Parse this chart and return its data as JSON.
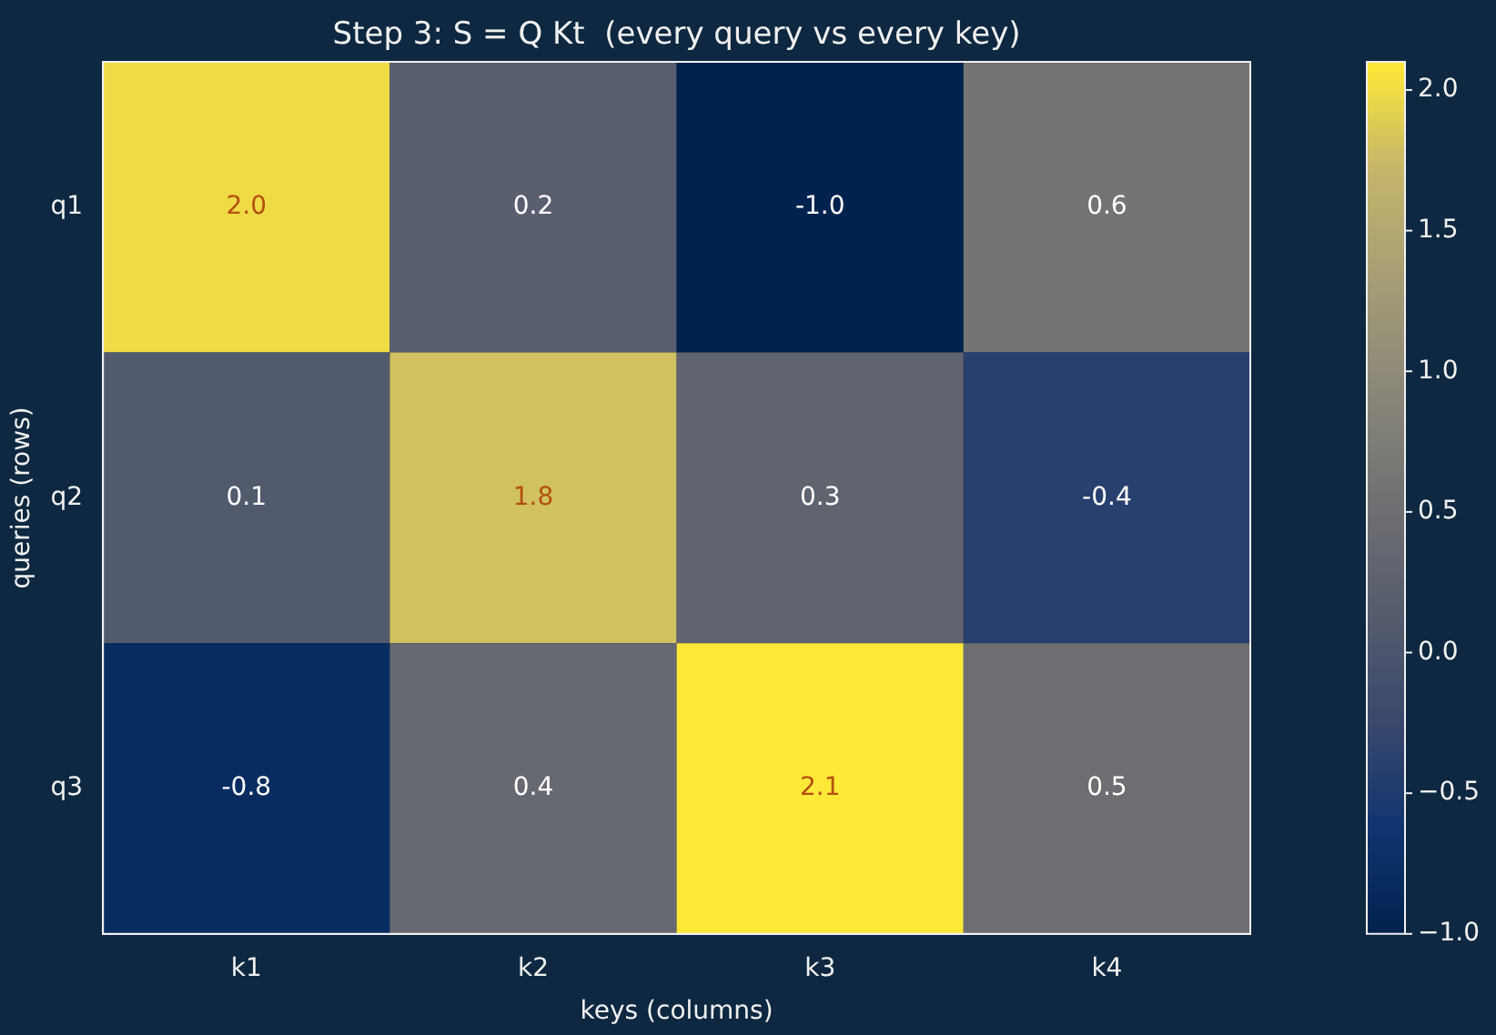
{
  "chart_data": {
    "type": "heatmap",
    "title": "Step 3: S = Q Kt  (every query vs every key)",
    "xlabel": "keys (columns)",
    "ylabel": "queries (rows)",
    "categories": [
      "k1",
      "k2",
      "k3",
      "k4"
    ],
    "y_categories": [
      "q1",
      "q2",
      "q3"
    ],
    "cells": [
      [
        2.0,
        0.2,
        -1.0,
        0.6
      ],
      [
        0.1,
        1.8,
        0.3,
        -0.4
      ],
      [
        -0.8,
        0.4,
        2.1,
        0.5
      ]
    ],
    "cell_labels": [
      [
        "2.0",
        "0.2",
        "-1.0",
        "0.6"
      ],
      [
        "0.1",
        "1.8",
        "0.3",
        "-0.4"
      ],
      [
        "-0.8",
        "0.4",
        "2.1",
        "0.5"
      ]
    ],
    "clim": [
      -1.0,
      2.1
    ],
    "cticks": [
      {
        "value": -1.0,
        "label": "−1.0"
      },
      {
        "value": -0.5,
        "label": "−0.5"
      },
      {
        "value": 0.0,
        "label": "0.0"
      },
      {
        "value": 0.5,
        "label": "0.5"
      },
      {
        "value": 1.0,
        "label": "1.0"
      },
      {
        "value": 1.5,
        "label": "1.5"
      },
      {
        "value": 2.0,
        "label": "2.0"
      }
    ]
  }
}
